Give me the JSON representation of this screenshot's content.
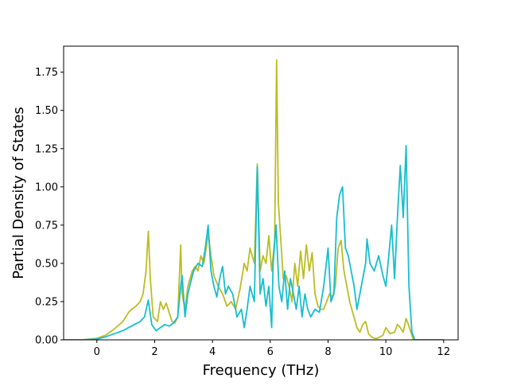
{
  "chart_data": {
    "type": "line",
    "title": "",
    "xlabel": "Frequency (THz)",
    "ylabel": "Partial Density of States",
    "xlim": [
      -1.15,
      12.5
    ],
    "ylim": [
      0,
      1.92
    ],
    "xticks": [
      0,
      2,
      4,
      6,
      8,
      10,
      12
    ],
    "xtick_labels": [
      "0",
      "2",
      "4",
      "6",
      "8",
      "10",
      "12"
    ],
    "yticks": [
      0,
      0.25,
      0.5,
      0.75,
      1.0,
      1.25,
      1.5,
      1.75
    ],
    "ytick_labels": [
      "0.00",
      "0.25",
      "0.50",
      "0.75",
      "1.00",
      "1.25",
      "1.50",
      "1.75"
    ],
    "grid": false,
    "legend": "none",
    "series": [
      {
        "color": "#bcbd22",
        "x": [
          -1.15,
          -0.5,
          0,
          0.3,
          0.6,
          0.9,
          1.1,
          1.2,
          1.35,
          1.5,
          1.6,
          1.7,
          1.78,
          1.85,
          1.95,
          2.1,
          2.2,
          2.3,
          2.4,
          2.5,
          2.6,
          2.7,
          2.8,
          2.9,
          2.95,
          3.05,
          3.15,
          3.3,
          3.4,
          3.5,
          3.6,
          3.7,
          3.8,
          3.85,
          3.95,
          4.05,
          4.2,
          4.35,
          4.5,
          4.65,
          4.8,
          4.95,
          5.1,
          5.2,
          5.3,
          5.45,
          5.55,
          5.65,
          5.75,
          5.85,
          5.95,
          6.05,
          6.15,
          6.22,
          6.28,
          6.35,
          6.45,
          6.55,
          6.65,
          6.75,
          6.85,
          6.95,
          7.05,
          7.15,
          7.25,
          7.35,
          7.45,
          7.55,
          7.65,
          7.75,
          7.85,
          7.95,
          8.05,
          8.15,
          8.25,
          8.35,
          8.45,
          8.55,
          8.65,
          8.75,
          8.85,
          9.0,
          9.1,
          9.2,
          9.3,
          9.4,
          9.5,
          9.6,
          9.7,
          9.8,
          9.9,
          10.0,
          10.15,
          10.3,
          10.4,
          10.5,
          10.6,
          10.7,
          10.78,
          10.85,
          10.95,
          12.0
        ],
        "y": [
          0,
          0,
          0.01,
          0.03,
          0.07,
          0.12,
          0.18,
          0.2,
          0.22,
          0.25,
          0.3,
          0.45,
          0.71,
          0.4,
          0.15,
          0.12,
          0.25,
          0.2,
          0.24,
          0.18,
          0.12,
          0.11,
          0.15,
          0.62,
          0.3,
          0.2,
          0.35,
          0.45,
          0.48,
          0.45,
          0.55,
          0.5,
          0.62,
          0.7,
          0.55,
          0.42,
          0.35,
          0.3,
          0.22,
          0.25,
          0.2,
          0.33,
          0.5,
          0.45,
          0.6,
          0.5,
          1.15,
          0.45,
          0.55,
          0.5,
          0.68,
          0.45,
          0.65,
          1.83,
          0.9,
          0.7,
          0.4,
          0.42,
          0.35,
          0.25,
          0.5,
          0.35,
          0.58,
          0.4,
          0.62,
          0.45,
          0.57,
          0.3,
          0.22,
          0.2,
          0.2,
          0.25,
          0.3,
          0.28,
          0.35,
          0.6,
          0.65,
          0.45,
          0.35,
          0.25,
          0.18,
          0.08,
          0.05,
          0.1,
          0.12,
          0.04,
          0.02,
          0.01,
          0.01,
          0.02,
          0.03,
          0.08,
          0.04,
          0.05,
          0.1,
          0.08,
          0.05,
          0.14,
          0.1,
          0.06,
          0,
          0
        ]
      },
      {
        "color": "#17becf",
        "x": [
          -1.15,
          -0.5,
          0,
          0.3,
          0.6,
          0.9,
          1.1,
          1.3,
          1.5,
          1.65,
          1.78,
          1.9,
          2.05,
          2.2,
          2.35,
          2.5,
          2.65,
          2.8,
          2.9,
          2.95,
          3.05,
          3.15,
          3.25,
          3.35,
          3.5,
          3.65,
          3.75,
          3.85,
          3.95,
          4.05,
          4.15,
          4.25,
          4.35,
          4.45,
          4.55,
          4.7,
          4.85,
          5.0,
          5.1,
          5.2,
          5.3,
          5.45,
          5.55,
          5.65,
          5.75,
          5.85,
          5.95,
          6.05,
          6.1,
          6.2,
          6.3,
          6.4,
          6.5,
          6.6,
          6.7,
          6.8,
          6.9,
          7.0,
          7.1,
          7.2,
          7.3,
          7.4,
          7.55,
          7.7,
          7.85,
          8.0,
          8.1,
          8.2,
          8.3,
          8.4,
          8.5,
          8.6,
          8.7,
          8.8,
          8.9,
          9.0,
          9.1,
          9.2,
          9.3,
          9.35,
          9.45,
          9.6,
          9.75,
          9.9,
          10.0,
          10.1,
          10.2,
          10.3,
          10.4,
          10.5,
          10.6,
          10.7,
          10.8,
          10.9,
          11.0,
          12.0
        ],
        "y": [
          0,
          0,
          0.005,
          0.02,
          0.04,
          0.06,
          0.08,
          0.1,
          0.12,
          0.15,
          0.26,
          0.1,
          0.06,
          0.08,
          0.1,
          0.09,
          0.11,
          0.15,
          0.35,
          0.42,
          0.15,
          0.3,
          0.38,
          0.45,
          0.5,
          0.48,
          0.6,
          0.75,
          0.45,
          0.35,
          0.28,
          0.4,
          0.48,
          0.3,
          0.35,
          0.3,
          0.15,
          0.2,
          0.08,
          0.2,
          0.35,
          0.25,
          1.13,
          0.3,
          0.4,
          0.22,
          0.35,
          0.08,
          0.5,
          0.75,
          0.35,
          0.25,
          0.45,
          0.2,
          0.4,
          0.3,
          0.2,
          0.35,
          0.15,
          0.3,
          0.2,
          0.15,
          0.2,
          0.18,
          0.35,
          0.6,
          0.25,
          0.3,
          0.8,
          0.95,
          1.0,
          0.6,
          0.55,
          0.45,
          0.35,
          0.2,
          0.3,
          0.4,
          0.5,
          0.66,
          0.5,
          0.45,
          0.55,
          0.42,
          0.35,
          0.55,
          0.75,
          0.4,
          0.8,
          1.14,
          0.8,
          1.27,
          0.35,
          0.05,
          0,
          0
        ]
      }
    ]
  }
}
